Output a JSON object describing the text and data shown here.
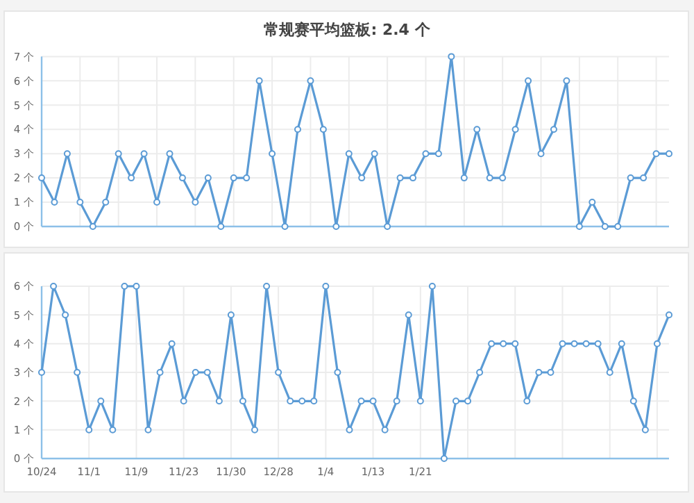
{
  "chart_data": [
    {
      "type": "line",
      "title": "常规赛平均篮板: 2.4 个",
      "categories": [
        null,
        null,
        null,
        null,
        null,
        null,
        null,
        null,
        null,
        null,
        null,
        null,
        null,
        null,
        null,
        null,
        null,
        null,
        null,
        null,
        null,
        null,
        null,
        null,
        null,
        null,
        null,
        null,
        null,
        null,
        null,
        null,
        null,
        null,
        null,
        null,
        null,
        null,
        null,
        null,
        null,
        null,
        null,
        null,
        null,
        null,
        null,
        null,
        null,
        null
      ],
      "series": [
        {
          "color": "#5b9bd5",
          "values": [
            2,
            1,
            3,
            1,
            0,
            1,
            3,
            2,
            3,
            1,
            3,
            2,
            1,
            2,
            0,
            2,
            2,
            6,
            3,
            0,
            4,
            6,
            4,
            0,
            3,
            2,
            3,
            0,
            2,
            2,
            3,
            3,
            7,
            2,
            4,
            2,
            2,
            4,
            6,
            3,
            4,
            6,
            0,
            1,
            0,
            0,
            2,
            2,
            3,
            3
          ]
        }
      ],
      "ylim": [
        0,
        7
      ],
      "yticks": [
        {
          "value": 0,
          "label": "0 个"
        },
        {
          "value": 1,
          "label": "1 个"
        },
        {
          "value": 2,
          "label": "2 个"
        },
        {
          "value": 3,
          "label": "3 个"
        },
        {
          "value": 4,
          "label": "4 个"
        },
        {
          "value": 5,
          "label": "5 个"
        },
        {
          "value": 6,
          "label": "6 个"
        },
        {
          "value": 7,
          "label": "7 个"
        }
      ],
      "grid": true,
      "marker": "circle",
      "tick_labels": "y"
    },
    {
      "type": "line",
      "categories": [
        "10/24",
        null,
        null,
        null,
        "11/1",
        null,
        null,
        null,
        "11/9",
        null,
        null,
        null,
        "11/23",
        null,
        null,
        null,
        "11/30",
        null,
        null,
        null,
        "12/28",
        null,
        null,
        null,
        "1/4",
        null,
        null,
        null,
        "1/13",
        null,
        null,
        null,
        "1/21",
        null,
        null,
        null,
        null,
        null,
        null,
        null,
        null,
        null,
        null,
        null,
        null,
        null,
        null,
        null,
        null,
        null,
        null,
        null,
        null,
        null
      ],
      "series": [
        {
          "color": "#5b9bd5",
          "values": [
            3,
            6,
            5,
            3,
            1,
            2,
            1,
            6,
            6,
            1,
            3,
            4,
            2,
            3,
            3,
            2,
            5,
            2,
            1,
            6,
            3,
            2,
            2,
            2,
            6,
            3,
            1,
            2,
            2,
            1,
            2,
            5,
            2,
            6,
            0,
            2,
            2,
            3,
            4,
            4,
            4,
            2,
            3,
            3,
            4,
            4,
            4,
            4,
            3,
            4,
            2,
            1,
            4,
            5
          ]
        }
      ],
      "ylim": [
        0,
        6
      ],
      "yticks": [
        {
          "value": 0,
          "label": "0 个"
        },
        {
          "value": 1,
          "label": "1 个"
        },
        {
          "value": 2,
          "label": "2 个"
        },
        {
          "value": 3,
          "label": "3 个"
        },
        {
          "value": 4,
          "label": "4 个"
        },
        {
          "value": 5,
          "label": "5 个"
        },
        {
          "value": 6,
          "label": "6 个"
        }
      ],
      "grid": true,
      "marker": "circle"
    }
  ]
}
